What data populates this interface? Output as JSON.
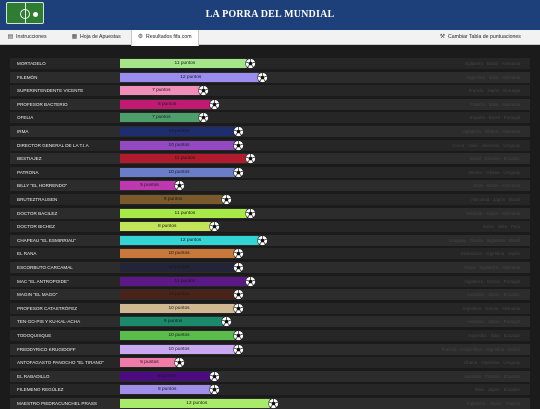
{
  "header": {
    "title": "LA PORRA DEL MUNDIAL"
  },
  "tabs": [
    {
      "label": "Instrucciones",
      "icon": "book-icon"
    },
    {
      "label": "Hoja de Apuestas",
      "icon": "sheet-icon"
    },
    {
      "label": "Resultados fifa.com",
      "icon": "gear-icon",
      "active": true
    },
    {
      "label": "Cambiar Tabla de puntuaciones",
      "icon": "wrench-icon"
    }
  ],
  "players": [
    {
      "name": "MORTADELO",
      "points_label": "11 puntos",
      "points": 11,
      "color": "#a4e58a",
      "teams": "Inglaterra · Brasil · Alemania"
    },
    {
      "name": "FILEMÓN",
      "points_label": "12 puntos",
      "points": 12,
      "color": "#9b8cf0",
      "teams": "Argentina · Italia · Alemania"
    },
    {
      "name": "SUPERINTENDENTE VICENTE",
      "points_label": "7 puntos",
      "points": 7,
      "color": "#f08db8",
      "teams": "Francia · Japón · Noruega"
    },
    {
      "name": "PROFESOR BACTERIO",
      "points_label": "8 puntos",
      "points": 8,
      "color": "#c01a73",
      "teams": "Francia · Italia · Alemania"
    },
    {
      "name": "OFELIA",
      "points_label": "7 puntos",
      "points": 7,
      "color": "#4e9e6c",
      "teams": "España · Brasil · Portugal"
    },
    {
      "name": "IRMA",
      "points_label": "10 puntos",
      "points": 10,
      "color": "#1d2d6e",
      "teams": "Inglaterra · Ghana · Alemania"
    },
    {
      "name": "DIRECTOR GENERAL DE LA T.I.A",
      "points_label": "10 puntos",
      "points": 10,
      "color": "#9448c2",
      "teams": "Corea · Italia · Alemania · Uruguay"
    },
    {
      "name": "BESTIAJEZ",
      "points_label": "11 puntos",
      "points": 11,
      "color": "#b01c2e",
      "teams": "Brasil · España · Ecuador"
    },
    {
      "name": "PATRONA",
      "points_label": "10 puntos",
      "points": 10,
      "color": "#6a7dc8",
      "teams": "México · Ghana · Uruguay"
    },
    {
      "name": "BILLY \"EL HORRENDO\"",
      "points_label": "5 puntos",
      "points": 5,
      "color": "#c038b0",
      "teams": "Chile · Brasil · Alemania"
    },
    {
      "name": "BRUTEZTRAUSEN",
      "points_label": "9 puntos",
      "points": 9,
      "color": "#7a5a2a",
      "teams": "Alemania · Japón · Brasil"
    },
    {
      "name": "DOCTOR BACILEZ",
      "points_label": "11 puntos",
      "points": 11,
      "color": "#a7ea48",
      "teams": "Holanda · Japón · Alemania"
    },
    {
      "name": "DOCTOR BICHEZ",
      "points_label": "8 puntos",
      "points": 8,
      "color": "#c2e458",
      "teams": "Suiza · Italia · Perú"
    },
    {
      "name": "CHAPEAU \"EL ESMIRRIAU\"",
      "points_label": "12 puntos",
      "points": 12,
      "color": "#33d4d4",
      "teams": "Uruguay · Grecia · Inglaterra · Brasil"
    },
    {
      "name": "EL RANA",
      "points_label": "10 puntos",
      "points": 10,
      "color": "#c8783a",
      "teams": "Dinamarca · Argentina · Japón"
    },
    {
      "name": "ESCORBUTO CARCAMAL",
      "points_label": "10 puntos",
      "points": 10,
      "color": "#242438",
      "teams": "Rusia · Inglaterra · Alemania"
    },
    {
      "name": "MAC \"EL ANTROPOIDE\"",
      "points_label": "11 puntos",
      "points": 11,
      "color": "#5d1888",
      "teams": "Inglaterra · Grecia · Portugal"
    },
    {
      "name": "MAGIN \"EL MAGO\"",
      "points_label": "10 puntos",
      "points": 10,
      "color": "#4a2418",
      "teams": "Australia · Japón · Ecuador"
    },
    {
      "name": "PROFESOR CATASTRÓFEZ",
      "points_label": "10 puntos",
      "points": 10,
      "color": "#d0b890",
      "teams": "Argentina · Grecia · Alemania"
    },
    {
      "name": "TEN-GO-PIS Y KU-KAL-ACHA",
      "points_label": "9 puntos",
      "points": 9,
      "color": "#1a8a6a",
      "teams": "Holanda · Japón · Portugal"
    },
    {
      "name": "TODOQUISQUE",
      "points_label": "10 puntos",
      "points": 10,
      "color": "#5abc4a",
      "teams": "Argentina · Italia · Ecuador"
    },
    {
      "name": "FREDDYRICO KRUGIDOFF",
      "points_label": "10 puntos",
      "points": 10,
      "color": "#c8a8f0",
      "teams": "Francia · Costa Rica · Argentina · Corea"
    },
    {
      "name": "ANTOFAGASTO PANOCHO \"EL TIRANO\"",
      "points_label": "5 puntos",
      "points": 5,
      "color": "#f07aa8",
      "teams": "Ghana · Argentina · Uruguay"
    },
    {
      "name": "EL RABADILLO",
      "points_label": "8 puntos",
      "points": 8,
      "color": "#4a0c80",
      "teams": "Australia · Francia · Ecuador"
    },
    {
      "name": "FILEMENO REGÚLEZ",
      "points_label": "8 puntos",
      "points": 8,
      "color": "#a08ee8",
      "teams": "Italia · Japón · Ecuador"
    },
    {
      "name": "MAESTRO PIEDRACUNCHEL PRASS",
      "points_label": "13 puntos",
      "points": 13,
      "color": "#a8ea6a",
      "teams": "Inglaterra · Japón · Francia"
    }
  ],
  "chart_data": {
    "type": "bar",
    "categories": [
      "MORTADELO",
      "FILEMÓN",
      "SUPERINTENDENTE VICENTE",
      "PROFESOR BACTERIO",
      "OFELIA",
      "IRMA",
      "DIRECTOR GENERAL DE LA T.I.A",
      "BESTIAJEZ",
      "PATRONA",
      "BILLY \"EL HORRENDO\"",
      "BRUTEZTRAUSEN",
      "DOCTOR BACILEZ",
      "DOCTOR BICHEZ",
      "CHAPEAU \"EL ESMIRRIAU\"",
      "EL RANA",
      "ESCORBUTO CARCAMAL",
      "MAC \"EL ANTROPOIDE\"",
      "MAGIN \"EL MAGO\"",
      "PROFESOR CATASTRÓFEZ",
      "TEN-GO-PIS Y KU-KAL-ACHA",
      "TODOQUISQUE",
      "FREDDYRICO KRUGIDOFF",
      "ANTOFAGASTO PANOCHO \"EL TIRANO\"",
      "EL RABADILLO",
      "FILEMENO REGÚLEZ",
      "MAESTRO PIEDRACUNCHEL PRASS"
    ],
    "values": [
      11,
      12,
      7,
      8,
      7,
      10,
      10,
      11,
      10,
      5,
      9,
      11,
      8,
      12,
      10,
      10,
      11,
      10,
      10,
      9,
      10,
      10,
      5,
      8,
      8,
      13
    ]
  }
}
